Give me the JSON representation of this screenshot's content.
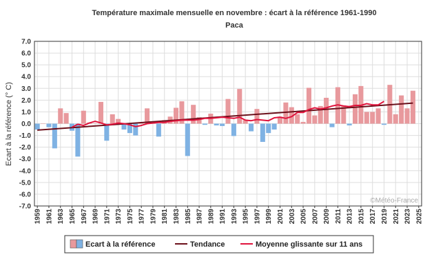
{
  "chart_data": {
    "type": "bar",
    "title": "Température maximale mensuelle en novembre : écart à la référence 1961-1990",
    "subtitle": "Paca",
    "ylabel": "Ecart à la référence (° C)",
    "xlabel": "",
    "ylim": [
      -7,
      7
    ],
    "yticks": [
      "7.0",
      "6.0",
      "5.0",
      "4.0",
      "3.0",
      "2.0",
      "1.0",
      "0.0",
      "-1.0",
      "-2.0",
      "-3.0",
      "-4.0",
      "-5.0",
      "-6.0",
      "-7.0"
    ],
    "xticks": [
      "1959",
      "1961",
      "1963",
      "1965",
      "1967",
      "1969",
      "1971",
      "1973",
      "1975",
      "1977",
      "1979",
      "1981",
      "1983",
      "1985",
      "1987",
      "1989",
      "1991",
      "1993",
      "1995",
      "1997",
      "1999",
      "2001",
      "2003",
      "2005",
      "2007",
      "2009",
      "2011",
      "2013",
      "2015",
      "2017",
      "2019",
      "2021",
      "2023",
      "2025"
    ],
    "grid": true,
    "legend_position": "bottom",
    "credit": "©Météo-France",
    "colors": {
      "positive": "#e8999d",
      "negative": "#7fb2e3",
      "trend": "#6b0f1a",
      "moving": "#e0133c",
      "grid": "#dddddd"
    },
    "years": [
      1959,
      1960,
      1961,
      1962,
      1963,
      1964,
      1965,
      1966,
      1967,
      1968,
      1969,
      1970,
      1971,
      1972,
      1973,
      1974,
      1975,
      1976,
      1977,
      1978,
      1979,
      1980,
      1981,
      1982,
      1983,
      1984,
      1985,
      1986,
      1987,
      1988,
      1989,
      1990,
      1991,
      1992,
      1993,
      1994,
      1995,
      1996,
      1997,
      1998,
      1999,
      2000,
      2001,
      2002,
      2003,
      2004,
      2005,
      2006,
      2007,
      2008,
      2009,
      2010,
      2011,
      2012,
      2013,
      2014,
      2015,
      2016,
      2017,
      2018,
      2019,
      2020,
      2021,
      2022,
      2023,
      2024
    ],
    "series": [
      {
        "name": "Ecart à la référence",
        "values": [
          -0.5,
          0.0,
          -0.3,
          -2.1,
          1.3,
          0.9,
          -0.6,
          -2.8,
          1.1,
          0.1,
          0.0,
          1.85,
          -1.45,
          0.8,
          0.4,
          -0.5,
          -0.8,
          -1.0,
          0.05,
          1.3,
          0.1,
          -1.1,
          0.3,
          0.6,
          1.35,
          1.9,
          -2.75,
          1.6,
          0.55,
          -0.1,
          0.85,
          -0.15,
          -0.2,
          2.1,
          -1.05,
          2.95,
          0.3,
          -0.65,
          1.25,
          -1.55,
          -0.8,
          -0.5,
          0.6,
          1.8,
          1.4,
          0.8,
          0.15,
          3.05,
          0.7,
          1.5,
          2.2,
          -0.3,
          3.1,
          1.55,
          -0.15,
          2.5,
          3.2,
          1.0,
          1.0,
          1.3,
          -0.1,
          3.3,
          0.8,
          2.4,
          1.3,
          2.8
        ]
      },
      {
        "name": "Tendance",
        "values": [
          -0.55,
          1.75
        ]
      },
      {
        "name": "Moyenne glissante sur 11 ans",
        "values": [
          null,
          null,
          null,
          null,
          null,
          null,
          -0.3,
          -0.05,
          -0.15,
          0.05,
          0.2,
          0.05,
          -0.1,
          -0.05,
          0.05,
          0.0,
          -0.1,
          -0.25,
          -0.15,
          0.0,
          0.05,
          0.1,
          0.1,
          0.2,
          0.25,
          0.3,
          0.3,
          0.3,
          0.35,
          0.45,
          0.45,
          0.5,
          0.55,
          0.5,
          0.45,
          0.55,
          0.3,
          0.25,
          0.35,
          0.3,
          0.25,
          0.5,
          0.55,
          0.45,
          0.6,
          0.95,
          0.95,
          1.2,
          1.35,
          1.25,
          1.35,
          1.5,
          1.6,
          1.5,
          1.45,
          1.55,
          1.55,
          1.7,
          1.6,
          1.6,
          1.9,
          null,
          null,
          null,
          null,
          null
        ]
      }
    ]
  }
}
